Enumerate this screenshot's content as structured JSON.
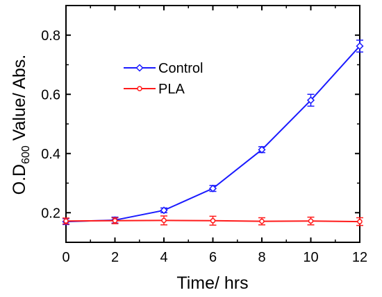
{
  "chart_data": {
    "type": "line",
    "xlabel": "Time/ hrs",
    "ylabel": {
      "prefix": "O.D",
      "subscript": "600",
      "suffix": " Value/ Abs."
    },
    "xlim": [
      0,
      12
    ],
    "ylim": [
      0.1,
      0.9
    ],
    "xticks": [
      0,
      2,
      4,
      6,
      8,
      10,
      12
    ],
    "yticks": [
      0.2,
      0.4,
      0.6,
      0.8
    ],
    "xtick_labels": [
      "0",
      "2",
      "4",
      "6",
      "8",
      "10",
      "12"
    ],
    "ytick_labels": [
      "0.2",
      "0.4",
      "0.6",
      "0.8"
    ],
    "grid": false,
    "legend_position": "top-left",
    "x": [
      0,
      2,
      4,
      6,
      8,
      10,
      12
    ],
    "series": [
      {
        "name": "Control",
        "color": "#1a1aff",
        "marker": "diamond",
        "values": [
          0.17,
          0.175,
          0.208,
          0.282,
          0.413,
          0.58,
          0.763
        ],
        "errors": [
          0.01,
          0.01,
          0.008,
          0.01,
          0.01,
          0.02,
          0.02
        ]
      },
      {
        "name": "PLA",
        "color": "#ff1a1a",
        "marker": "circle",
        "values": [
          0.172,
          0.173,
          0.174,
          0.173,
          0.171,
          0.172,
          0.17
        ],
        "errors": [
          0.01,
          0.01,
          0.015,
          0.015,
          0.012,
          0.013,
          0.013
        ]
      }
    ]
  }
}
